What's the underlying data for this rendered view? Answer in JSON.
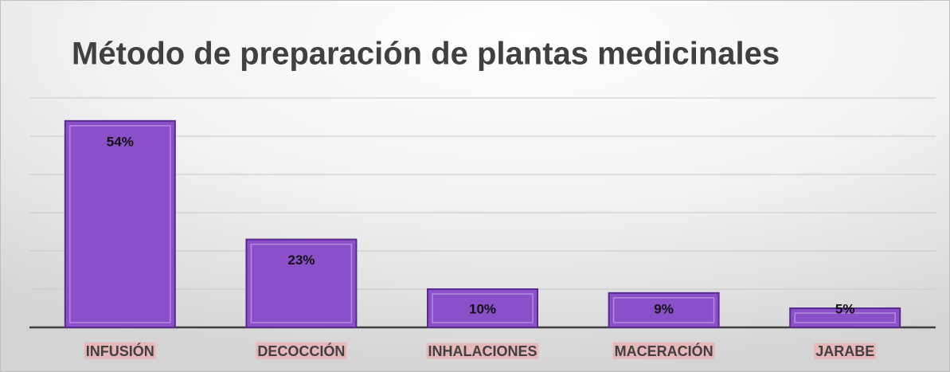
{
  "chart_data": {
    "type": "bar",
    "title": "Método de preparación de plantas medicinales",
    "categories": [
      "INFUSIÓN",
      "DECOCCIÓN",
      "INHALACIONES",
      "MACERACIÓN",
      "JARABE"
    ],
    "values": [
      54,
      23,
      10,
      9,
      5
    ],
    "value_labels": [
      "54%",
      "23%",
      "10%",
      "9%",
      "5%"
    ],
    "color": "#8a4fc9",
    "ylim": [
      0,
      60
    ],
    "yticks": [
      0,
      10,
      20,
      30,
      40,
      50,
      60
    ],
    "grid": true
  }
}
